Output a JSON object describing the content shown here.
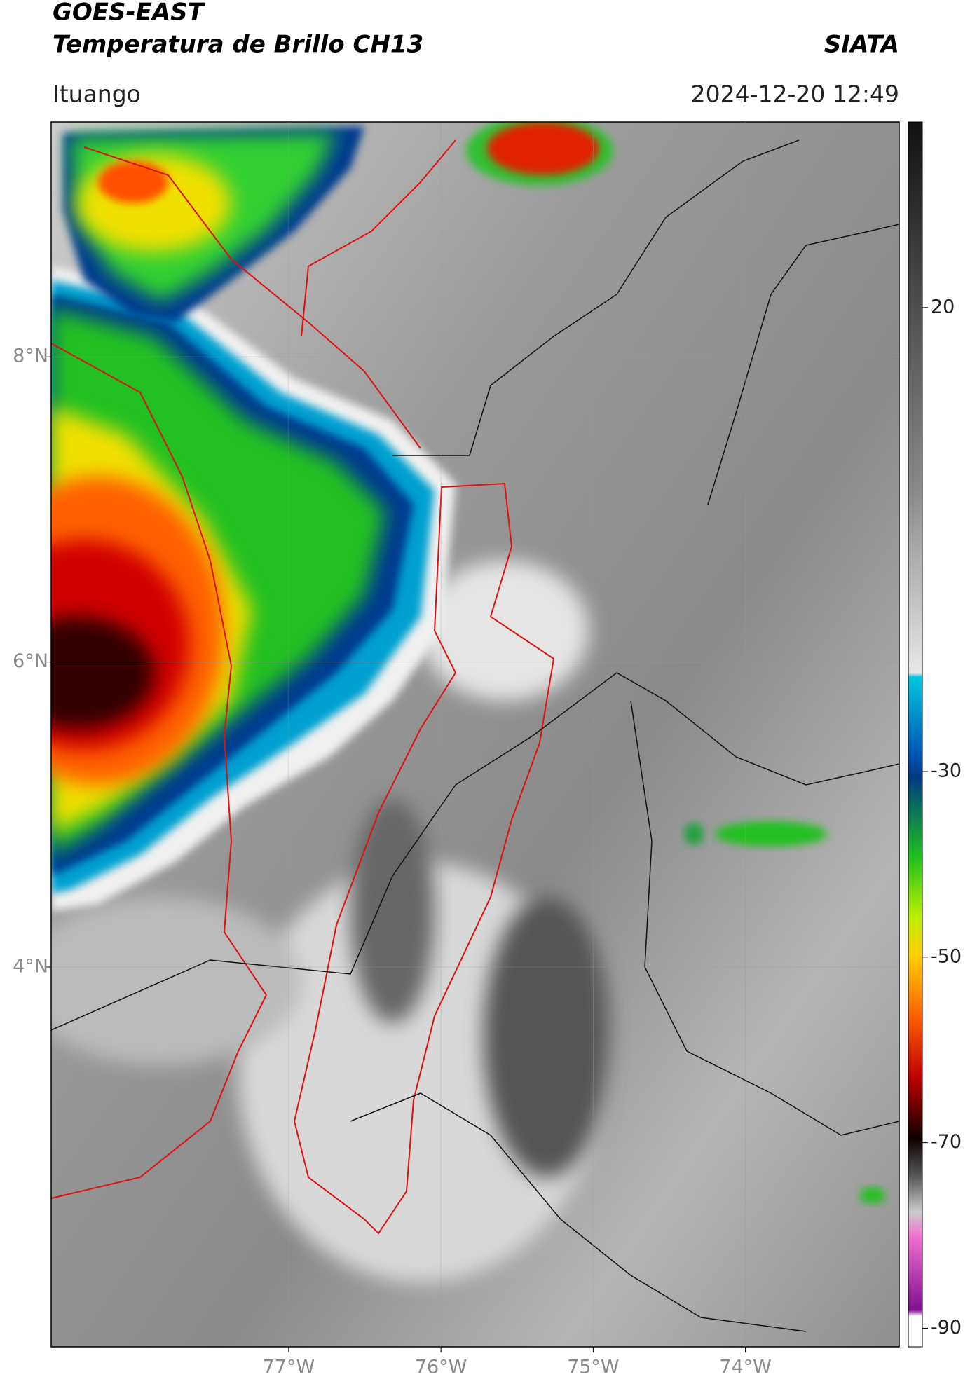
{
  "header": {
    "title": "GOES-EAST",
    "subtitle": "Temperatura de Brillo CH13",
    "source": "SIATA",
    "location": "Ituango",
    "datetime": "2024-12-20 12:49"
  },
  "map": {
    "xlim": [
      -78.56,
      -72.99
    ],
    "ylim": [
      1.51,
      9.54
    ],
    "xticks": [
      {
        "value": -77,
        "label": "77°W"
      },
      {
        "value": -76,
        "label": "76°W"
      },
      {
        "value": -75,
        "label": "75°W"
      },
      {
        "value": -74,
        "label": "74°W"
      }
    ],
    "yticks": [
      {
        "value": 8,
        "label": "8°N"
      },
      {
        "value": 6,
        "label": "6°N"
      },
      {
        "value": 4,
        "label": "4°N"
      }
    ]
  },
  "colorbar": {
    "lim": [
      -92,
      40
    ],
    "ticks": [
      20,
      -30,
      -50,
      -70,
      -90
    ]
  }
}
